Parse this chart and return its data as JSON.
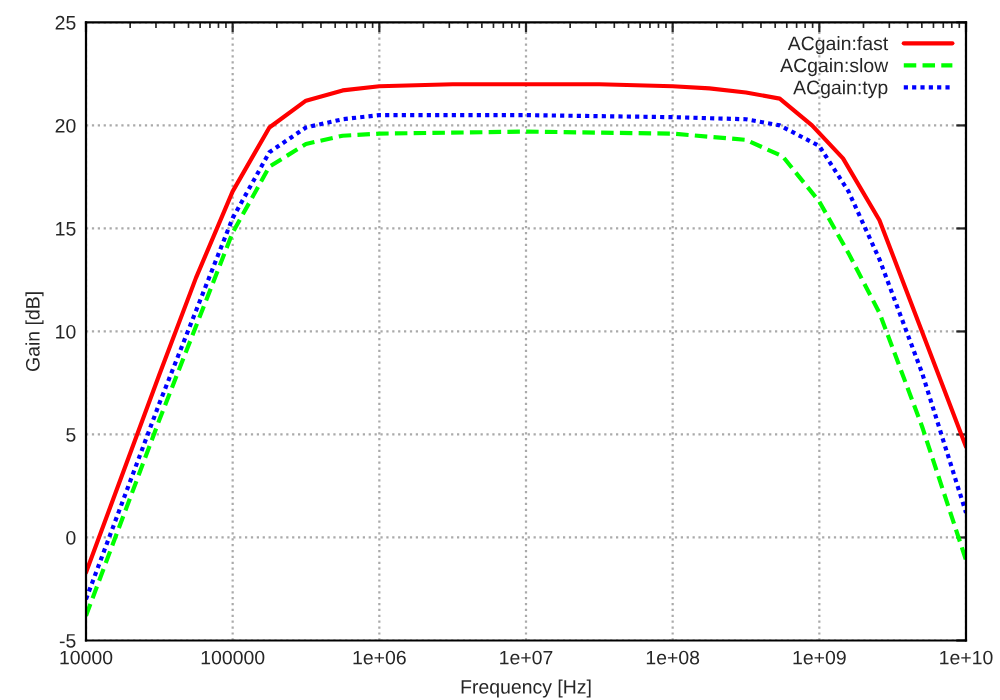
{
  "chart_data": {
    "type": "line",
    "xlabel": "Frequency [Hz]",
    "ylabel": "Gain [dB]",
    "log": "x",
    "grid": true,
    "legend": "top right",
    "xlim": [
      10000,
      10000000000
    ],
    "xticks": [
      {
        "value": 10000,
        "label": "10000"
      },
      {
        "value": 100000,
        "label": "100000"
      },
      {
        "value": 1000000,
        "label": "1e+06"
      },
      {
        "value": 10000000,
        "label": "1e+07"
      },
      {
        "value": 100000000,
        "label": "1e+08"
      },
      {
        "value": 1000000000,
        "label": "1e+09"
      },
      {
        "value": 10000000000,
        "label": "1e+10"
      }
    ],
    "ylim": [
      -5,
      25
    ],
    "yticks": [
      -5,
      0,
      5,
      10,
      15,
      20,
      25
    ],
    "series": [
      {
        "name": "ACgain:fast",
        "color": "#ff0000",
        "line_style": "solid",
        "x": [
          10000.0,
          31600.0,
          56200.0,
          100000.0,
          178000.0,
          316000.0,
          562000.0,
          1000000.0,
          3160000.0,
          10000000.0,
          31600000.0,
          100000000.0,
          178000000.0,
          316000000.0,
          537000000.0,
          891000000.0,
          1450000000.0,
          2570000000.0,
          5010000000.0,
          10000000000.0
        ],
        "values": [
          -1.7,
          7.9,
          12.6,
          16.8,
          19.9,
          21.2,
          21.7,
          21.9,
          22.0,
          22.0,
          22.0,
          21.9,
          21.8,
          21.6,
          21.3,
          20.0,
          18.4,
          15.4,
          10.0,
          4.4
        ]
      },
      {
        "name": "ACgain:slow",
        "color": "#00ff00",
        "line_style": "dashed",
        "x": [
          10000.0,
          31600.0,
          100000.0,
          178000.0,
          316000.0,
          562000.0,
          1000000.0,
          10000000.0,
          100000000.0,
          316000000.0,
          562000000.0,
          1000000000.0,
          1580000000.0,
          2570000000.0,
          5010000000.0,
          10000000000.0
        ],
        "values": [
          -3.8,
          5.7,
          14.8,
          18.0,
          19.1,
          19.5,
          19.6,
          19.7,
          19.6,
          19.3,
          18.5,
          16.3,
          13.8,
          10.9,
          5.4,
          -1.1
        ]
      },
      {
        "name": "ACgain:typ",
        "color": "#0000ff",
        "line_style": "dotted",
        "x": [
          10000.0,
          31600.0,
          100000.0,
          178000.0,
          316000.0,
          562000.0,
          1000000.0,
          10000000.0,
          100000000.0,
          316000000.0,
          537000000.0,
          1000000000.0,
          1580000000.0,
          2570000000.0,
          5010000000.0,
          10000000000.0
        ],
        "values": [
          -3.0,
          6.5,
          15.5,
          18.7,
          19.9,
          20.3,
          20.5,
          20.5,
          20.4,
          20.3,
          20.0,
          19.0,
          16.8,
          13.5,
          8.0,
          1.2
        ]
      }
    ]
  }
}
